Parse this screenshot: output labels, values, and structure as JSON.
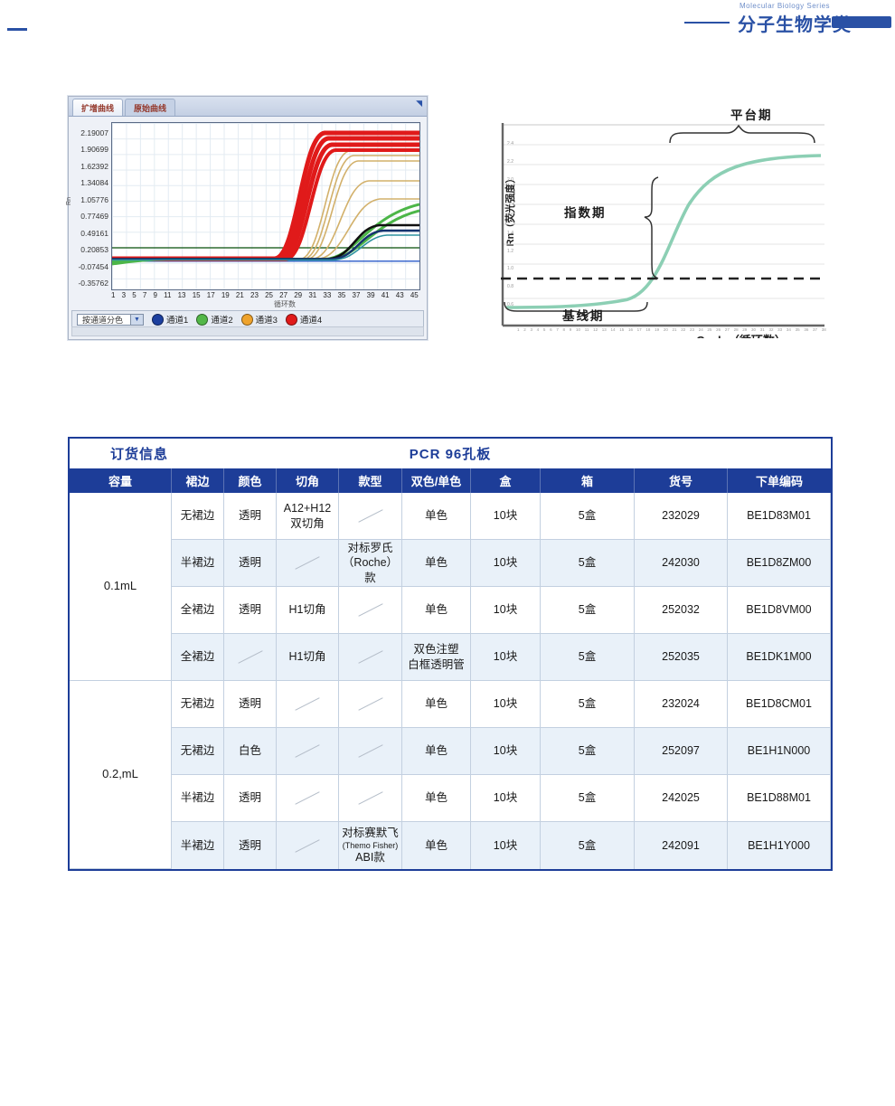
{
  "page_header": {
    "series_en": "Molecular Biology Series",
    "category": "分子生物学类",
    "accent_color": "#2a51a5"
  },
  "qpcr_window": {
    "tabs": [
      {
        "label": "扩增曲线"
      },
      {
        "label": "原始曲线"
      }
    ],
    "y_axis_label": "Rn",
    "y_ticks": [
      "2.19007",
      "1.90699",
      "1.62392",
      "1.34084",
      "1.05776",
      "0.77469",
      "0.49161",
      "0.20853",
      "-0.07454",
      "-0.35762"
    ],
    "x_ticks": {
      "from": 1,
      "to": 45,
      "step": 2
    },
    "x_axis_label": "循环数",
    "legend": {
      "selector": "按通道分色",
      "channels": [
        {
          "label": "通道1",
          "color": "#1c3f9f"
        },
        {
          "label": "通道2",
          "color": "#52b748"
        },
        {
          "label": "通道3",
          "color": "#efa32c"
        },
        {
          "label": "通道4",
          "color": "#e01a1a"
        }
      ]
    },
    "curve_colors": {
      "channel4": "#e01a1a",
      "channel3": "#d2b06a",
      "channel2": "#4cb648",
      "channel1": "#14336e"
    }
  },
  "schematic": {
    "y_axis_label": "Rn（荧光强度）",
    "x_axis_label": "Cycle（循环数）",
    "y_ticks": [
      "2.4",
      "2.2",
      "2.0",
      "1.8",
      "1.6",
      "1.4",
      "1.2",
      "1.0",
      "0.8",
      "0.6"
    ],
    "x_ticks": {
      "from": 1,
      "to": 38,
      "step": 1
    },
    "phases": {
      "plateau": "平台期",
      "exponential": "指数期",
      "baseline": "基线期"
    },
    "curve_color": "#8ccfb4"
  },
  "order_table": {
    "section_title": "订货信息",
    "product_title": "PCR 96孔板",
    "columns": [
      "容量",
      "裙边",
      "颜色",
      "切角",
      "款型",
      "双色/单色",
      "盒",
      "箱",
      "货号",
      "下单编码"
    ],
    "groups": [
      {
        "volume": "0.1mL",
        "rows": [
          {
            "skirt": "无裙边",
            "color": "透明",
            "cut1": "A12+H12",
            "cut2": "双切角",
            "mode1": "单色",
            "box": "10块",
            "carton": "5盒",
            "cat": "232029",
            "code": "BE1D83M01"
          },
          {
            "skirt": "半裙边",
            "color": "透明",
            "style1": "对标罗氏",
            "style2": "（Roche）款",
            "mode1": "单色",
            "box": "10块",
            "carton": "5盒",
            "cat": "242030",
            "code": "BE1D8ZM00"
          },
          {
            "skirt": "全裙边",
            "color": "透明",
            "cut1": "H1切角",
            "mode1": "单色",
            "box": "10块",
            "carton": "5盒",
            "cat": "252032",
            "code": "BE1D8VM00"
          },
          {
            "skirt": "全裙边",
            "cut1": "H1切角",
            "mode1": "双色注塑",
            "mode2": "白框透明管",
            "box": "10块",
            "carton": "5盒",
            "cat": "252035",
            "code": "BE1DK1M00"
          }
        ]
      },
      {
        "volume": "0.2,mL",
        "rows": [
          {
            "skirt": "无裙边",
            "color": "透明",
            "mode1": "单色",
            "box": "10块",
            "carton": "5盒",
            "cat": "232024",
            "code": "BE1D8CM01"
          },
          {
            "skirt": "无裙边",
            "color": "白色",
            "mode1": "单色",
            "box": "10块",
            "carton": "5盒",
            "cat": "252097",
            "code": "BE1H1N000"
          },
          {
            "skirt": "半裙边",
            "color": "透明",
            "mode1": "单色",
            "box": "10块",
            "carton": "5盒",
            "cat": "242025",
            "code": "BE1D88M01"
          },
          {
            "skirt": "半裙边",
            "color": "透明",
            "style1": "对标赛默飞",
            "style2": "(Themo Fisher)",
            "style3": "ABI款",
            "mode1": "单色",
            "box": "10块",
            "carton": "5盒",
            "cat": "242091",
            "code": "BE1H1Y000"
          }
        ]
      }
    ]
  }
}
